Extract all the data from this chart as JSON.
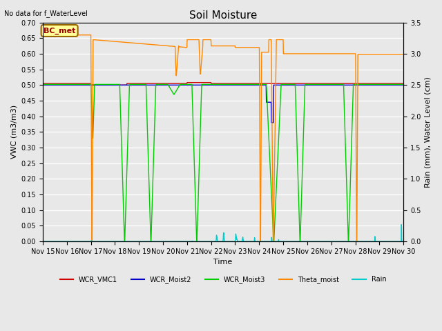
{
  "title": "Soil Moisture",
  "subtitle": "No data for f_WaterLevel",
  "xlabel": "Time",
  "ylabel_left": "VWC (m3/m3)",
  "ylabel_right": "Rain (mm), Water Level (cm)",
  "ylim_left": [
    0.0,
    0.7
  ],
  "ylim_right": [
    0.0,
    3.5
  ],
  "yticks_left": [
    0.0,
    0.05,
    0.1,
    0.15,
    0.2,
    0.25,
    0.3,
    0.35,
    0.4,
    0.45,
    0.5,
    0.55,
    0.6,
    0.65,
    0.7
  ],
  "yticks_right": [
    0.0,
    0.5,
    1.0,
    1.5,
    2.0,
    2.5,
    3.0,
    3.5
  ],
  "xtick_labels": [
    "Nov 15",
    "Nov 16",
    "Nov 17",
    "Nov 18",
    "Nov 19",
    "Nov 20",
    "Nov 21",
    "Nov 22",
    "Nov 23",
    "Nov 24",
    "Nov 25",
    "Nov 26",
    "Nov 27",
    "Nov 28",
    "Nov 29",
    "Nov 30"
  ],
  "legend_labels": [
    "WCR_VMC1",
    "WCR_Moist2",
    "WCR_Moist3",
    "Theta_moist",
    "Rain"
  ],
  "legend_colors": [
    "#cc0000",
    "#0000cc",
    "#00cc00",
    "#ff8800",
    "#00cccc"
  ],
  "bc_met_box_color": "#ffff99",
  "bc_met_text_color": "#990000",
  "bc_met_border_color": "#996600",
  "background_color": "#e8e8e8",
  "plot_bg_color": "#e8e8e8",
  "grid_color": "#ffffff"
}
